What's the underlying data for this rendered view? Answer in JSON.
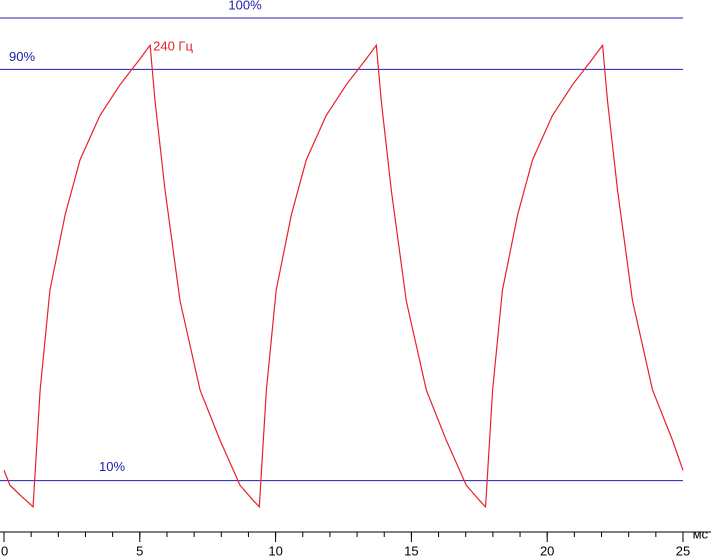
{
  "chart_data": {
    "type": "line",
    "x_label": "мс",
    "xlim": [
      0,
      25
    ],
    "xticks": [
      0,
      5,
      10,
      15,
      20,
      25
    ],
    "xminorticks": [
      0,
      1,
      2,
      3,
      4,
      5,
      6,
      7,
      8,
      9,
      10,
      11,
      12,
      13,
      14,
      15,
      16,
      17,
      18,
      19,
      20,
      21,
      22,
      23,
      24,
      25
    ],
    "ylim": [
      0,
      103.5
    ],
    "reference_lines": [
      {
        "value": 100,
        "label": "100%"
      },
      {
        "value": 90,
        "label": "90%"
      },
      {
        "value": 10,
        "label": "10%"
      }
    ],
    "reference_color": "#2020b0",
    "series": [
      {
        "name": "240 Гц",
        "color": "#e8202a",
        "x": [
          0,
          0.22,
          0.59,
          1.07,
          1.33,
          1.69,
          2.25,
          2.8,
          3.53,
          4.27,
          5.0,
          5.38,
          5.56,
          5.93,
          6.48,
          7.22,
          7.95,
          8.69,
          9.2,
          9.4,
          9.66,
          10.02,
          10.58,
          11.13,
          11.86,
          12.6,
          13.33,
          13.71,
          13.89,
          14.26,
          14.81,
          15.55,
          16.28,
          17.02,
          17.53,
          17.73,
          17.99,
          18.35,
          18.91,
          19.46,
          20.19,
          20.93,
          21.66,
          22.04,
          22.22,
          22.59,
          23.14,
          23.88,
          24.61,
          25.0
        ],
        "values": [
          12,
          9.1,
          7.2,
          4.9,
          27.6,
          47,
          61.7,
          72.4,
          81,
          87,
          92,
          94.7,
          83.9,
          66.5,
          45,
          27.6,
          17.9,
          9.1,
          6,
          4.9,
          27.6,
          47,
          61.7,
          72.4,
          81,
          87,
          92,
          94.7,
          83.9,
          66.5,
          45,
          27.6,
          17.9,
          9.1,
          6,
          4.9,
          27.6,
          47,
          61.7,
          72.4,
          81,
          87,
          92,
          94.7,
          83.9,
          66.5,
          45,
          27.6,
          17.9,
          12
        ]
      }
    ]
  }
}
